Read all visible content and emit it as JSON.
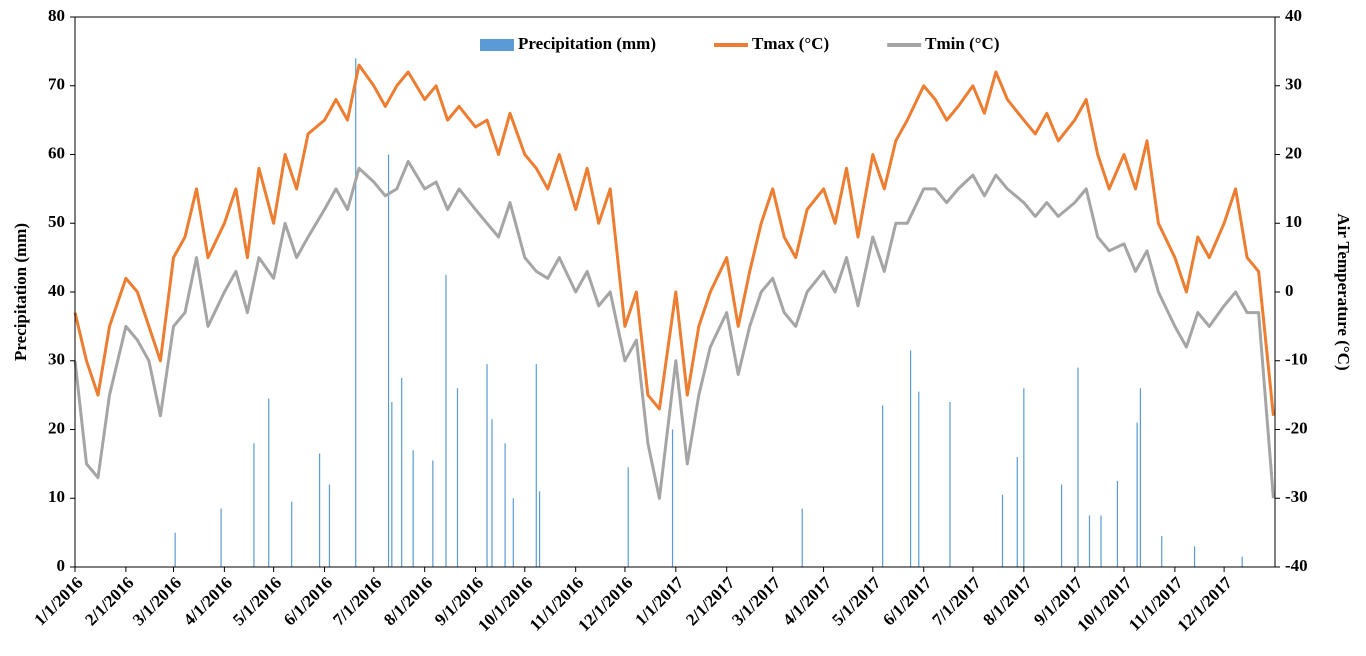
{
  "chart_data": {
    "type": "bar-line",
    "y_label": "Precipitation (mm)",
    "y2_label": "Air Temperature (°C)",
    "xlim": [
      "1/1/2016",
      "12/31/2017"
    ],
    "xticks": [
      "1/1/2016",
      "2/1/2016",
      "3/1/2016",
      "4/1/2016",
      "5/1/2016",
      "6/1/2016",
      "7/1/2016",
      "8/1/2016",
      "9/1/2016",
      "10/1/2016",
      "11/1/2016",
      "12/1/2016",
      "1/1/2017",
      "2/1/2017",
      "3/1/2017",
      "4/1/2017",
      "5/1/2017",
      "6/1/2017",
      "7/1/2017",
      "8/1/2017",
      "9/1/2017",
      "10/1/2017",
      "11/1/2017",
      "12/1/2017"
    ],
    "ylim": [
      0,
      80
    ],
    "yticks": [
      0,
      10,
      20,
      30,
      40,
      50,
      60,
      70,
      80
    ],
    "y2lim": [
      -40,
      40
    ],
    "y2ticks": [
      -40,
      -30,
      -20,
      -10,
      0,
      10,
      20,
      30,
      40
    ],
    "legend": "top",
    "series": [
      {
        "name": "Precipitation (mm)",
        "type": "bar",
        "color": "#5b9bd5",
        "x": [
          "3/2/2016",
          "3/30/2016",
          "4/19/2016",
          "4/28/2016",
          "5/12/2016",
          "5/29/2016",
          "6/4/2016",
          "6/20/2016",
          "7/10/2016",
          "7/12/2016",
          "7/18/2016",
          "7/25/2016",
          "8/6/2016",
          "8/14/2016",
          "8/21/2016",
          "9/8/2016",
          "9/11/2016",
          "9/19/2016",
          "9/24/2016",
          "10/8/2016",
          "10/10/2016",
          "12/3/2016",
          "12/30/2016",
          "3/19/2017",
          "5/7/2017",
          "5/24/2017",
          "5/29/2017",
          "6/17/2017",
          "7/19/2017",
          "7/28/2017",
          "8/1/2017",
          "8/24/2017",
          "9/3/2017",
          "9/10/2017",
          "9/17/2017",
          "9/27/2017",
          "10/9/2017",
          "10/11/2017",
          "10/24/2017",
          "11/13/2017",
          "12/12/2017"
        ],
        "values": [
          5,
          8.5,
          18,
          24.5,
          9.5,
          16.5,
          12,
          74,
          60,
          24,
          27.5,
          17,
          15.5,
          42.5,
          26,
          29.5,
          21.5,
          18,
          10,
          29.5,
          11,
          14.5,
          20,
          8.5,
          23.5,
          31.5,
          25.5,
          24,
          10.5,
          16,
          26,
          12,
          29,
          7.5,
          7.5,
          12.5,
          21,
          26,
          4.5,
          3,
          1.5
        ]
      },
      {
        "name": "Tmax (°C)",
        "type": "line",
        "axis": "y2",
        "color": "#ed7d31",
        "x": [
          "1/1/2016",
          "1/8/2016",
          "1/15/2016",
          "1/22/2016",
          "2/1/2016",
          "2/8/2016",
          "2/15/2016",
          "2/22/2016",
          "3/1/2016",
          "3/8/2016",
          "3/15/2016",
          "3/22/2016",
          "4/1/2016",
          "4/8/2016",
          "4/15/2016",
          "4/22/2016",
          "5/1/2016",
          "5/8/2016",
          "5/15/2016",
          "5/22/2016",
          "6/1/2016",
          "6/8/2016",
          "6/15/2016",
          "6/22/2016",
          "7/1/2016",
          "7/8/2016",
          "7/15/2016",
          "7/22/2016",
          "8/1/2016",
          "8/8/2016",
          "8/15/2016",
          "8/22/2016",
          "9/1/2016",
          "9/8/2016",
          "9/15/2016",
          "9/22/2016",
          "10/1/2016",
          "10/8/2016",
          "10/15/2016",
          "10/22/2016",
          "11/1/2016",
          "11/8/2016",
          "11/15/2016",
          "11/22/2016",
          "12/1/2016",
          "12/8/2016",
          "12/15/2016",
          "12/22/2016",
          "1/1/2017",
          "1/8/2017",
          "1/15/2017",
          "1/22/2017",
          "2/1/2017",
          "2/8/2017",
          "2/15/2017",
          "2/22/2017",
          "3/1/2017",
          "3/8/2017",
          "3/15/2017",
          "3/22/2017",
          "4/1/2017",
          "4/8/2017",
          "4/15/2017",
          "4/22/2017",
          "5/1/2017",
          "5/8/2017",
          "5/15/2017",
          "5/22/2017",
          "6/1/2017",
          "6/8/2017",
          "6/15/2017",
          "6/22/2017",
          "7/1/2017",
          "7/8/2017",
          "7/15/2017",
          "7/22/2017",
          "8/1/2017",
          "8/8/2017",
          "8/15/2017",
          "8/22/2017",
          "9/1/2017",
          "9/8/2017",
          "9/15/2017",
          "9/22/2017",
          "10/1/2017",
          "10/8/2017",
          "10/15/2017",
          "10/22/2017",
          "11/1/2017",
          "11/8/2017",
          "11/15/2017",
          "11/22/2017",
          "12/1/2017",
          "12/8/2017",
          "12/15/2017",
          "12/22/2017",
          "12/31/2017"
        ],
        "values": [
          -3,
          -10,
          -15,
          -5,
          2,
          0,
          -5,
          -10,
          5,
          8,
          15,
          5,
          10,
          15,
          5,
          18,
          10,
          20,
          15,
          23,
          25,
          28,
          25,
          33,
          30,
          27,
          30,
          32,
          28,
          30,
          25,
          27,
          24,
          25,
          20,
          26,
          20,
          18,
          15,
          20,
          12,
          18,
          10,
          15,
          -5,
          0,
          -15,
          -17,
          0,
          -15,
          -5,
          0,
          5,
          -5,
          3,
          10,
          15,
          8,
          5,
          12,
          15,
          10,
          18,
          8,
          20,
          15,
          22,
          25,
          30,
          28,
          25,
          27,
          30,
          26,
          32,
          28,
          25,
          23,
          26,
          22,
          25,
          28,
          20,
          15,
          20,
          15,
          22,
          10,
          5,
          0,
          8,
          5,
          10,
          15,
          5,
          3,
          -18
        ]
      },
      {
        "name": "Tmin (°C)",
        "type": "line",
        "axis": "y2",
        "color": "#a5a5a5",
        "x": [
          "1/1/2016",
          "1/8/2016",
          "1/15/2016",
          "1/22/2016",
          "2/1/2016",
          "2/8/2016",
          "2/15/2016",
          "2/22/2016",
          "3/1/2016",
          "3/8/2016",
          "3/15/2016",
          "3/22/2016",
          "4/1/2016",
          "4/8/2016",
          "4/15/2016",
          "4/22/2016",
          "5/1/2016",
          "5/8/2016",
          "5/15/2016",
          "5/22/2016",
          "6/1/2016",
          "6/8/2016",
          "6/15/2016",
          "6/22/2016",
          "7/1/2016",
          "7/8/2016",
          "7/15/2016",
          "7/22/2016",
          "8/1/2016",
          "8/8/2016",
          "8/15/2016",
          "8/22/2016",
          "9/1/2016",
          "9/8/2016",
          "9/15/2016",
          "9/22/2016",
          "10/1/2016",
          "10/8/2016",
          "10/15/2016",
          "10/22/2016",
          "11/1/2016",
          "11/8/2016",
          "11/15/2016",
          "11/22/2016",
          "12/1/2016",
          "12/8/2016",
          "12/15/2016",
          "12/22/2016",
          "1/1/2017",
          "1/8/2017",
          "1/15/2017",
          "1/22/2017",
          "2/1/2017",
          "2/8/2017",
          "2/15/2017",
          "2/22/2017",
          "3/1/2017",
          "3/8/2017",
          "3/15/2017",
          "3/22/2017",
          "4/1/2017",
          "4/8/2017",
          "4/15/2017",
          "4/22/2017",
          "5/1/2017",
          "5/8/2017",
          "5/15/2017",
          "5/22/2017",
          "6/1/2017",
          "6/8/2017",
          "6/15/2017",
          "6/22/2017",
          "7/1/2017",
          "7/8/2017",
          "7/15/2017",
          "7/22/2017",
          "8/1/2017",
          "8/8/2017",
          "8/15/2017",
          "8/22/2017",
          "9/1/2017",
          "9/8/2017",
          "9/15/2017",
          "9/22/2017",
          "10/1/2017",
          "10/8/2017",
          "10/15/2017",
          "10/22/2017",
          "11/1/2017",
          "11/8/2017",
          "11/15/2017",
          "11/22/2017",
          "12/1/2017",
          "12/8/2017",
          "12/15/2017",
          "12/22/2017",
          "12/31/2017"
        ],
        "values": [
          -10,
          -25,
          -27,
          -15,
          -5,
          -7,
          -10,
          -18,
          -5,
          -3,
          5,
          -5,
          0,
          3,
          -3,
          5,
          2,
          10,
          5,
          8,
          12,
          15,
          12,
          18,
          16,
          14,
          15,
          19,
          15,
          16,
          12,
          15,
          12,
          10,
          8,
          13,
          5,
          3,
          2,
          5,
          0,
          3,
          -2,
          0,
          -10,
          -7,
          -22,
          -30,
          -10,
          -25,
          -15,
          -8,
          -3,
          -12,
          -5,
          0,
          2,
          -3,
          -5,
          0,
          3,
          0,
          5,
          -2,
          8,
          3,
          10,
          10,
          15,
          15,
          13,
          15,
          17,
          14,
          17,
          15,
          13,
          11,
          13,
          11,
          13,
          15,
          8,
          6,
          7,
          3,
          6,
          0,
          -5,
          -8,
          -3,
          -5,
          -2,
          0,
          -3,
          -3,
          -30
        ]
      }
    ]
  }
}
